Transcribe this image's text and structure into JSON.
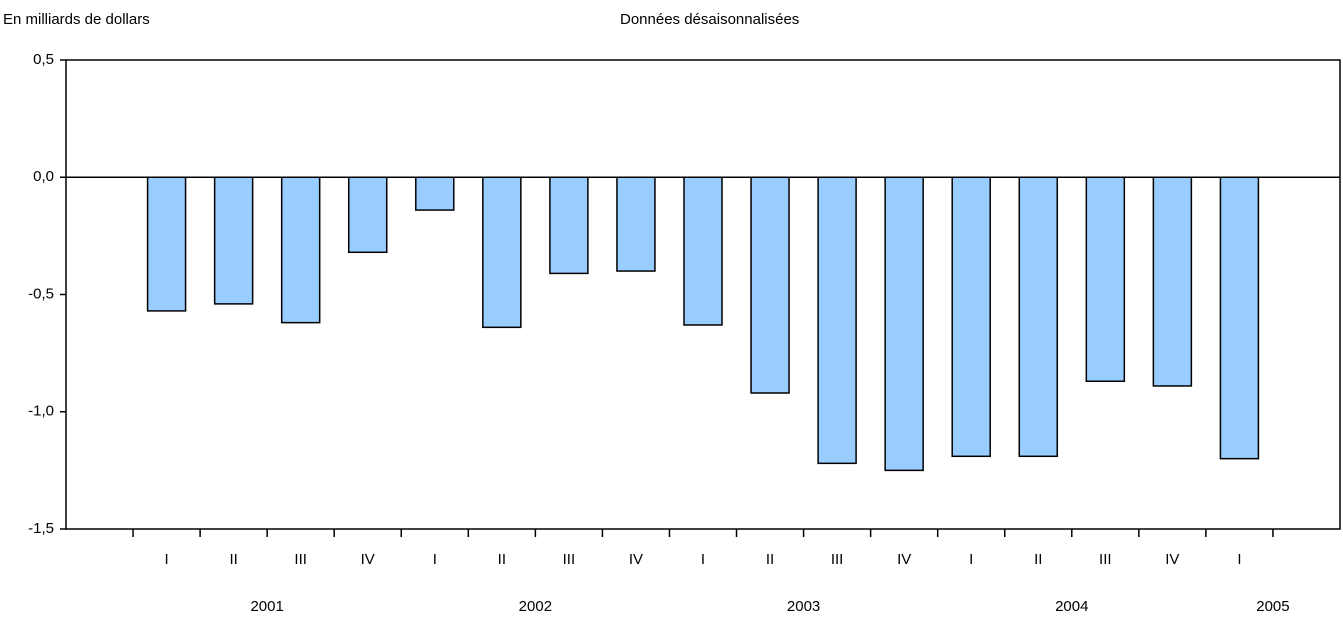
{
  "chart_data": {
    "type": "bar",
    "y_label": "En milliards de dollars",
    "subtitle": "Données désaisonnalisées",
    "categories": [
      null,
      "I",
      "II",
      "III",
      "IV",
      "I",
      "II",
      "III",
      "IV",
      "I",
      "II",
      "III",
      "IV",
      "I",
      "II",
      "III",
      "IV",
      "I",
      null
    ],
    "years": [
      "2001",
      "2002",
      "2003",
      "2004",
      "2005"
    ],
    "values": [
      null,
      -0.57,
      -0.54,
      -0.62,
      -0.32,
      -0.14,
      -0.64,
      -0.41,
      -0.4,
      -0.63,
      -0.92,
      -1.22,
      -1.25,
      -1.19,
      -1.19,
      -0.87,
      -0.89,
      -1.2,
      null
    ],
    "color": "#99ccff",
    "ylim": [
      -1.5,
      0.5
    ],
    "yticks": [
      {
        "value": -1.5,
        "label": "-1,5"
      },
      {
        "value": -1.0,
        "label": "-1,0"
      },
      {
        "value": -0.5,
        "label": "-0,5"
      },
      {
        "value": 0,
        "label": "0,0"
      },
      {
        "value": 0.5,
        "label": "0,5"
      }
    ],
    "grid": false
  }
}
